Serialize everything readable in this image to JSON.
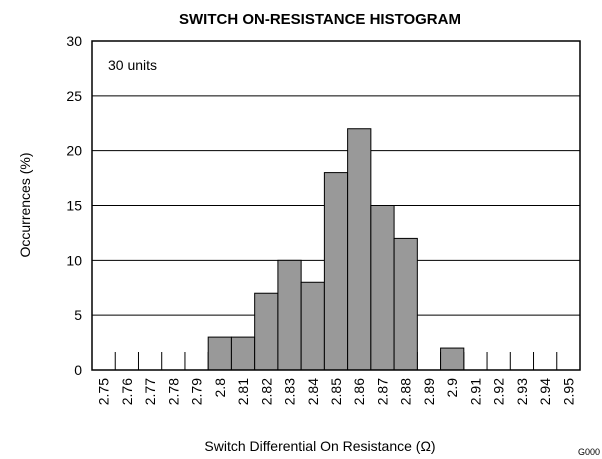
{
  "chart_data": {
    "type": "bar",
    "title": "SWITCH ON-RESISTANCE HISTOGRAM",
    "annotation": "30 units",
    "footnote": "G000",
    "x_label": "Switch Differential On Resistance (Ω)",
    "y_label": "Occurrences (%)",
    "categories": [
      "2.75",
      "2.76",
      "2.77",
      "2.78",
      "2.79",
      "2.8",
      "2.81",
      "2.82",
      "2.83",
      "2.84",
      "2.85",
      "2.86",
      "2.87",
      "2.88",
      "2.89",
      "2.9",
      "2.91",
      "2.92",
      "2.93",
      "2.94",
      "2.95"
    ],
    "values": [
      0,
      0,
      0,
      0,
      0,
      3,
      3,
      7,
      10,
      8,
      18,
      22,
      15,
      12,
      0,
      2,
      0,
      0,
      0,
      0,
      0
    ],
    "color": "#999999",
    "ylim": [
      0,
      30
    ],
    "yticks": [
      0,
      5,
      10,
      15,
      20,
      25,
      30
    ],
    "grid": true
  }
}
